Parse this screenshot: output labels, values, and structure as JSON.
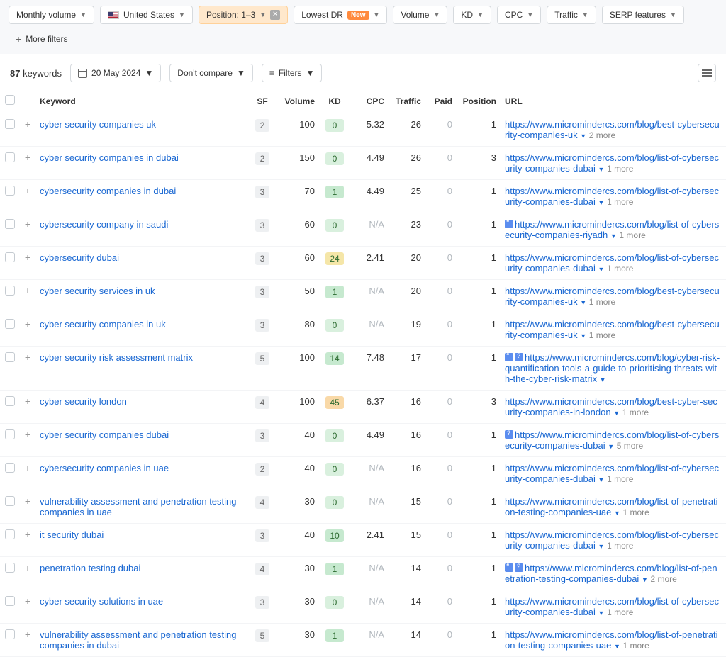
{
  "filters": {
    "monthly_volume": "Monthly volume",
    "country": "United States",
    "position": "Position: 1–3",
    "lowest_dr": "Lowest DR",
    "new_badge": "New",
    "volume": "Volume",
    "kd": "KD",
    "cpc": "CPC",
    "traffic": "Traffic",
    "serp": "SERP features",
    "more": "More filters"
  },
  "toolbar": {
    "count": "87",
    "count_label": "keywords",
    "date": "20 May 2024",
    "compare": "Don't compare",
    "filters": "Filters"
  },
  "headers": {
    "keyword": "Keyword",
    "sf": "SF",
    "volume": "Volume",
    "kd": "KD",
    "cpc": "CPC",
    "traffic": "Traffic",
    "paid": "Paid",
    "position": "Position",
    "url": "URL"
  },
  "kd_colors": {
    "green": "#c6e9cf",
    "green_light": "#d9f0de",
    "yellow": "#f5e6a8",
    "orange": "#f9d9a8"
  },
  "rows": [
    {
      "kw": "cyber security companies uk",
      "sf": "2",
      "vol": "100",
      "kd": "0",
      "kdc": "green_light",
      "cpc": "5.32",
      "tr": "26",
      "pd": "0",
      "pos": "1",
      "url": "https://www.micromindercs.com/blog/best-cybersecurity-companies-uk",
      "more": "2 more",
      "icons": []
    },
    {
      "kw": "cyber security companies in dubai",
      "sf": "2",
      "vol": "150",
      "kd": "0",
      "kdc": "green_light",
      "cpc": "4.49",
      "tr": "26",
      "pd": "0",
      "pos": "3",
      "url": "https://www.micromindercs.com/blog/list-of-cybersecurity-companies-dubai",
      "more": "1 more",
      "icons": []
    },
    {
      "kw": "cybersecurity companies in dubai",
      "sf": "3",
      "vol": "70",
      "kd": "1",
      "kdc": "green",
      "cpc": "4.49",
      "tr": "25",
      "pd": "0",
      "pos": "1",
      "url": "https://www.micromindercs.com/blog/list-of-cybersecurity-companies-dubai",
      "more": "1 more",
      "icons": []
    },
    {
      "kw": "cybersecurity company in saudi",
      "sf": "3",
      "vol": "60",
      "kd": "0",
      "kdc": "green_light",
      "cpc": "N/A",
      "tr": "23",
      "pd": "0",
      "pos": "1",
      "url": "https://www.micromindercs.com/blog/list-of-cybersecurity-companies-riyadh",
      "more": "1 more",
      "icons": [
        "quote"
      ]
    },
    {
      "kw": "cybersecurity dubai",
      "sf": "3",
      "vol": "60",
      "kd": "24",
      "kdc": "yellow",
      "cpc": "2.41",
      "tr": "20",
      "pd": "0",
      "pos": "1",
      "url": "https://www.micromindercs.com/blog/list-of-cybersecurity-companies-dubai",
      "more": "1 more",
      "icons": []
    },
    {
      "kw": "cyber security services in uk",
      "sf": "3",
      "vol": "50",
      "kd": "1",
      "kdc": "green",
      "cpc": "N/A",
      "tr": "20",
      "pd": "0",
      "pos": "1",
      "url": "https://www.micromindercs.com/blog/best-cybersecurity-companies-uk",
      "more": "1 more",
      "icons": []
    },
    {
      "kw": "cyber security companies in uk",
      "sf": "3",
      "vol": "80",
      "kd": "0",
      "kdc": "green_light",
      "cpc": "N/A",
      "tr": "19",
      "pd": "0",
      "pos": "1",
      "url": "https://www.micromindercs.com/blog/best-cybersecurity-companies-uk",
      "more": "1 more",
      "icons": []
    },
    {
      "kw": "cyber security risk assessment matrix",
      "sf": "5",
      "vol": "100",
      "kd": "14",
      "kdc": "green",
      "cpc": "7.48",
      "tr": "17",
      "pd": "0",
      "pos": "1",
      "url": "https://www.micromindercs.com/blog/cyber-risk-quantification-tools-a-guide-to-prioritising-threats-with-the-cyber-risk-matrix",
      "more": "",
      "icons": [
        "quote",
        "q"
      ]
    },
    {
      "kw": "cyber security london",
      "sf": "4",
      "vol": "100",
      "kd": "45",
      "kdc": "orange",
      "cpc": "6.37",
      "tr": "16",
      "pd": "0",
      "pos": "3",
      "url": "https://www.micromindercs.com/blog/best-cyber-security-companies-in-london",
      "more": "1 more",
      "icons": []
    },
    {
      "kw": "cyber security companies dubai",
      "sf": "3",
      "vol": "40",
      "kd": "0",
      "kdc": "green_light",
      "cpc": "4.49",
      "tr": "16",
      "pd": "0",
      "pos": "1",
      "url": "https://www.micromindercs.com/blog/list-of-cybersecurity-companies-dubai",
      "more": "5 more",
      "icons": [
        "q"
      ]
    },
    {
      "kw": "cybersecurity companies in uae",
      "sf": "2",
      "vol": "40",
      "kd": "0",
      "kdc": "green_light",
      "cpc": "N/A",
      "tr": "16",
      "pd": "0",
      "pos": "1",
      "url": "https://www.micromindercs.com/blog/list-of-cybersecurity-companies-dubai",
      "more": "1 more",
      "icons": []
    },
    {
      "kw": "vulnerability assessment and penetration testing companies in uae",
      "sf": "4",
      "vol": "30",
      "kd": "0",
      "kdc": "green_light",
      "cpc": "N/A",
      "tr": "15",
      "pd": "0",
      "pos": "1",
      "url": "https://www.micromindercs.com/blog/list-of-penetration-testing-companies-uae",
      "more": "1 more",
      "icons": []
    },
    {
      "kw": "it security dubai",
      "sf": "3",
      "vol": "40",
      "kd": "10",
      "kdc": "green",
      "cpc": "2.41",
      "tr": "15",
      "pd": "0",
      "pos": "1",
      "url": "https://www.micromindercs.com/blog/list-of-cybersecurity-companies-dubai",
      "more": "1 more",
      "icons": []
    },
    {
      "kw": "penetration testing dubai",
      "sf": "4",
      "vol": "30",
      "kd": "1",
      "kdc": "green",
      "cpc": "N/A",
      "tr": "14",
      "pd": "0",
      "pos": "1",
      "url": "https://www.micromindercs.com/blog/list-of-penetration-testing-companies-dubai",
      "more": "2 more",
      "icons": [
        "quote",
        "q"
      ]
    },
    {
      "kw": "cyber security solutions in uae",
      "sf": "3",
      "vol": "30",
      "kd": "0",
      "kdc": "green_light",
      "cpc": "N/A",
      "tr": "14",
      "pd": "0",
      "pos": "1",
      "url": "https://www.micromindercs.com/blog/list-of-cybersecurity-companies-dubai",
      "more": "1 more",
      "icons": []
    },
    {
      "kw": "vulnerability assessment and penetration testing companies in dubai",
      "sf": "5",
      "vol": "30",
      "kd": "1",
      "kdc": "green",
      "cpc": "N/A",
      "tr": "14",
      "pd": "0",
      "pos": "1",
      "url": "https://www.micromindercs.com/blog/list-of-penetration-testing-companies-uae",
      "more": "1 more",
      "icons": []
    }
  ]
}
